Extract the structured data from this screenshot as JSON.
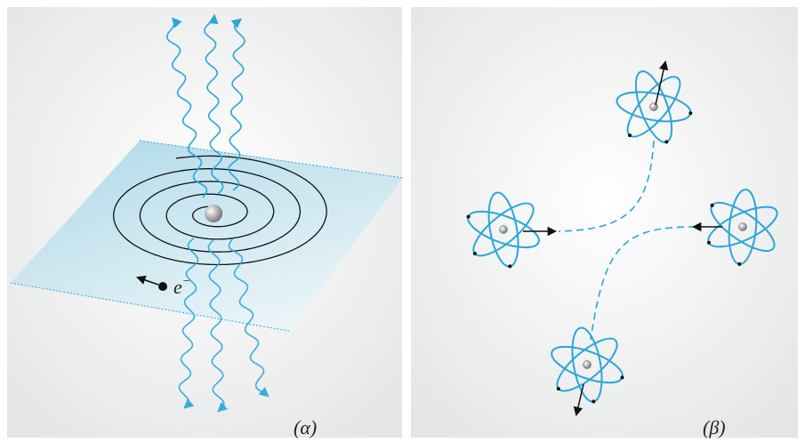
{
  "panels": [
    {
      "caption": "(α)",
      "electron": {
        "symbol": "e",
        "charge": "−"
      }
    },
    {
      "caption": "(β)"
    }
  ]
}
